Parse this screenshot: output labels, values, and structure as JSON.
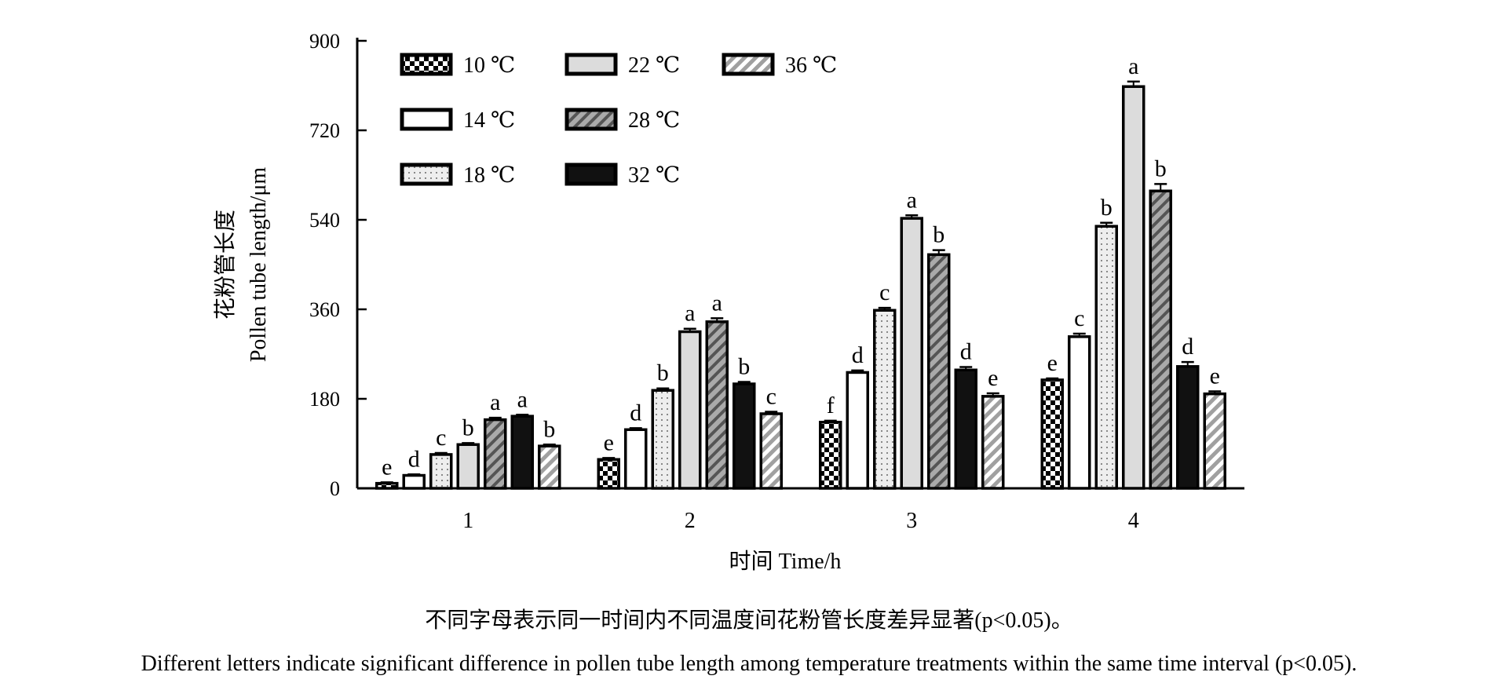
{
  "chart_data": {
    "type": "bar",
    "title": "",
    "xlabel": "时间 Time/h",
    "ylabel_cn": "花粉管长度",
    "ylabel": "Pollen tube length/μm",
    "ylim": [
      0,
      900
    ],
    "yticks": [
      0,
      180,
      360,
      540,
      720,
      900
    ],
    "categories": [
      "1",
      "2",
      "3",
      "4"
    ],
    "legend_position": "top-left",
    "grid": false,
    "series": [
      {
        "name": "10 ℃",
        "pattern": "checker",
        "values": [
          10,
          58,
          133,
          218
        ],
        "errors": [
          2,
          3,
          3,
          3
        ],
        "letters": [
          "e",
          "e",
          "f",
          "e"
        ]
      },
      {
        "name": "14 ℃",
        "pattern": "white",
        "values": [
          26,
          118,
          233,
          305
        ],
        "errors": [
          2,
          3,
          4,
          6
        ],
        "letters": [
          "d",
          "d",
          "d",
          "c"
        ]
      },
      {
        "name": "18 ℃",
        "pattern": "dotted",
        "values": [
          68,
          197,
          358,
          527
        ],
        "errors": [
          3,
          4,
          5,
          7
        ],
        "letters": [
          "c",
          "b",
          "c",
          "b"
        ]
      },
      {
        "name": "22 ℃",
        "pattern": "lightgray",
        "values": [
          88,
          315,
          543,
          808
        ],
        "errors": [
          3,
          6,
          6,
          10
        ],
        "letters": [
          "b",
          "a",
          "a",
          "a"
        ]
      },
      {
        "name": "28 ℃",
        "pattern": "darkhatch",
        "values": [
          138,
          335,
          470,
          598
        ],
        "errors": [
          4,
          7,
          9,
          14
        ],
        "letters": [
          "a",
          "a",
          "b",
          "b"
        ]
      },
      {
        "name": "32 ℃",
        "pattern": "black",
        "values": [
          145,
          210,
          238,
          245
        ],
        "errors": [
          3,
          4,
          6,
          9
        ],
        "letters": [
          "a",
          "b",
          "d",
          "d"
        ]
      },
      {
        "name": "36 ℃",
        "pattern": "lighthatch",
        "values": [
          85,
          150,
          185,
          190
        ],
        "errors": [
          3,
          4,
          6,
          5
        ],
        "letters": [
          "b",
          "c",
          "e",
          "e"
        ]
      }
    ]
  },
  "captions": {
    "cn": "不同字母表示同一时间内不同温度间花粉管长度差异显著(p<0.05)。",
    "en": "Different letters indicate significant difference in pollen tube length among temperature treatments within the same time interval (p<0.05)."
  }
}
